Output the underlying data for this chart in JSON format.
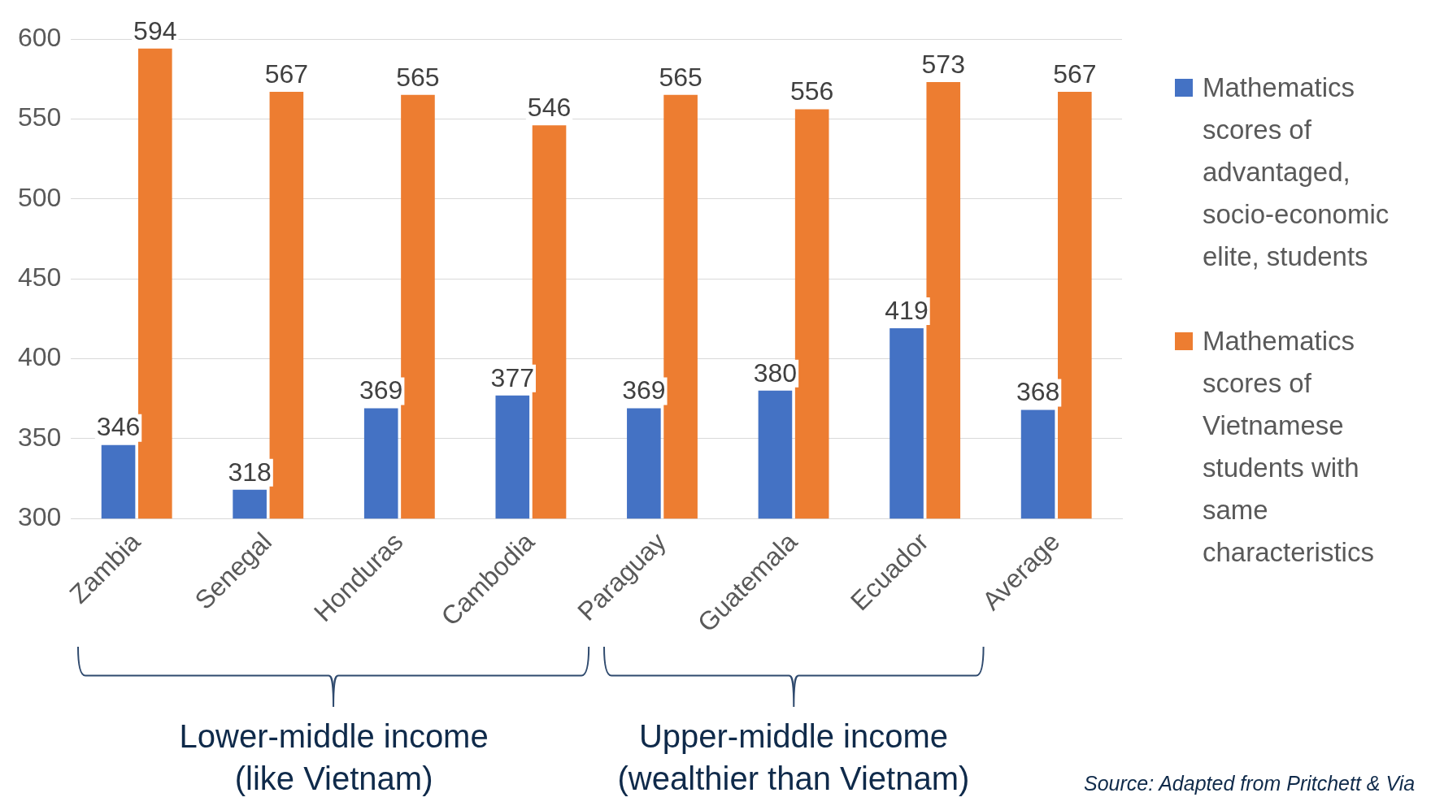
{
  "chart_data": {
    "type": "bar",
    "categories": [
      "Zambia",
      "Senegal",
      "Honduras",
      "Cambodia",
      "Paraguay",
      "Guatemala",
      "Ecuador",
      "Average"
    ],
    "series": [
      {
        "name": "Mathematics scores of advantaged, socio-economic elite, students",
        "color": "#4472c4",
        "values": [
          346,
          318,
          369,
          377,
          369,
          380,
          419,
          368
        ]
      },
      {
        "name": "Mathematics scores of Vietnamese students with same characteristics",
        "color": "#ed7d31",
        "values": [
          594,
          567,
          565,
          546,
          565,
          556,
          573,
          567
        ]
      }
    ],
    "ylim": [
      300,
      600
    ],
    "yticks": [
      300,
      350,
      400,
      450,
      500,
      550,
      600
    ],
    "grid": "y",
    "legend": "right",
    "data_labels": true,
    "annotations": [
      "Lower-middle income\n(like Vietnam)",
      "Upper-middle income\n(wealthier than Vietnam)",
      "Source: Adapted from Pritchett & Via"
    ]
  }
}
